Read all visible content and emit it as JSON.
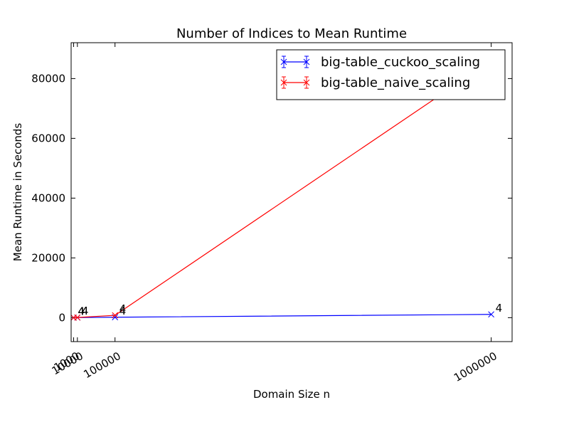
{
  "chart_data": {
    "type": "line",
    "title": "Number of Indices to Mean Runtime",
    "xlabel": "Domain Size n",
    "ylabel": "Mean Runtime in Seconds",
    "xlim": [
      -5000,
      1050000
    ],
    "ylim": [
      -8000,
      92000
    ],
    "xticks": [
      {
        "value": 1000,
        "label": "1000"
      },
      {
        "value": 10000,
        "label": "10000"
      },
      {
        "value": 100000,
        "label": "100000"
      },
      {
        "value": 1000000,
        "label": "1000000"
      }
    ],
    "yticks": [
      {
        "value": 0,
        "label": "0"
      },
      {
        "value": 20000,
        "label": "20000"
      },
      {
        "value": 40000,
        "label": "40000"
      },
      {
        "value": 60000,
        "label": "60000"
      },
      {
        "value": 80000,
        "label": "80000"
      }
    ],
    "legend_position": "top-right",
    "grid": false,
    "series": [
      {
        "name": "big-table_cuckoo_scaling",
        "color": "#0000ff",
        "x": [
          1000,
          10000,
          100000,
          1000000
        ],
        "y": [
          5,
          40,
          150,
          1100
        ],
        "labels": [
          "4",
          "4",
          "4",
          "4"
        ]
      },
      {
        "name": "big-table_naive_scaling",
        "color": "#ff0000",
        "x": [
          1000,
          10000,
          100000,
          1000000
        ],
        "y": [
          5,
          60,
          800,
          86000
        ],
        "labels": [
          "4",
          "4",
          "4",
          "4"
        ]
      }
    ]
  }
}
